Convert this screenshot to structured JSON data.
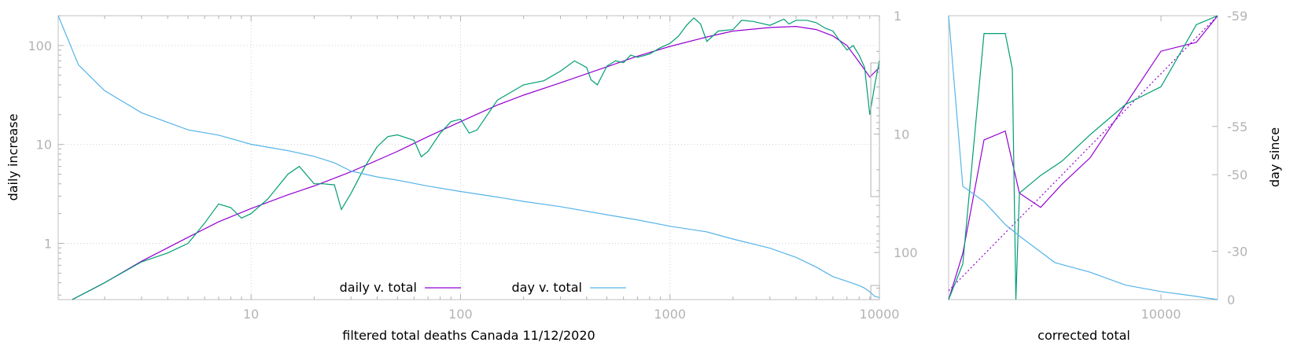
{
  "chart_data": [
    {
      "type": "line",
      "xlabel": "filtered total deaths Canada 11/12/2020",
      "ylabel": "daily increase",
      "y2label": "",
      "xscale": "log",
      "yscale": "log",
      "y2scale": "log-reversed",
      "xlim": [
        1.2,
        10000
      ],
      "ylim": [
        0.27,
        200
      ],
      "y2lim": [
        1,
        250
      ],
      "xticks": [
        10,
        100,
        1000,
        10000
      ],
      "xtick_labels": [
        "10",
        "100",
        "1000",
        "10000"
      ],
      "yticks": [
        1,
        10,
        100
      ],
      "ytick_labels": [
        "1",
        "10",
        "100"
      ],
      "y2ticks": [
        1,
        10,
        100
      ],
      "y2tick_labels": [
        "1",
        "10",
        "100"
      ],
      "grid": true,
      "legend_position": "bottom-center",
      "legend": [
        {
          "label": "daily v. total",
          "color": "#9400d3"
        },
        {
          "label": "day v. total",
          "color": "#56b4e9"
        }
      ],
      "series": [
        {
          "name": "daily v. total",
          "color": "#9400d3",
          "axis": "left",
          "x": [
            1.4,
            2,
            3,
            5,
            7,
            10,
            15,
            20,
            30,
            50,
            70,
            100,
            150,
            200,
            300,
            500,
            700,
            1000,
            1500,
            2000,
            3000,
            4000,
            5000,
            6000,
            7000,
            8000,
            9000,
            10000
          ],
          "y": [
            0.27,
            0.4,
            0.66,
            1.15,
            1.65,
            2.25,
            3.1,
            3.8,
            5.3,
            8.5,
            12,
            17,
            25,
            31.5,
            42,
            61,
            78,
            98,
            122,
            140,
            152,
            156,
            145,
            125,
            100,
            68,
            48,
            60
          ]
        },
        {
          "name": "",
          "color": "#009e73",
          "axis": "left",
          "x": [
            1.4,
            2,
            3,
            4,
            5,
            6,
            7,
            8,
            9,
            10,
            12,
            15,
            17,
            20,
            22,
            25,
            27,
            30,
            35,
            40,
            45,
            50,
            60,
            65,
            70,
            80,
            90,
            100,
            110,
            120,
            150,
            200,
            250,
            300,
            350,
            400,
            420,
            450,
            500,
            550,
            600,
            650,
            700,
            800,
            900,
            1000,
            1100,
            1200,
            1300,
            1400,
            1500,
            1700,
            2000,
            2200,
            2500,
            3000,
            3500,
            3700,
            4000,
            4500,
            5000,
            5500,
            6000,
            6500,
            7000,
            7500,
            8000,
            8500,
            9000,
            9500,
            10000
          ],
          "y": [
            0.27,
            0.4,
            0.65,
            0.8,
            1.0,
            1.6,
            2.5,
            2.3,
            1.8,
            2.0,
            2.8,
            5.0,
            6.0,
            4.0,
            4.0,
            3.9,
            2.2,
            3.2,
            6.0,
            9.5,
            12,
            12.5,
            11,
            7.5,
            8.5,
            13,
            17,
            18,
            13,
            14,
            28,
            40,
            44,
            55,
            70,
            60,
            45,
            40,
            62,
            70,
            67,
            80,
            76,
            82,
            95,
            105,
            125,
            160,
            190,
            165,
            110,
            140,
            145,
            180,
            175,
            160,
            185,
            165,
            180,
            180,
            170,
            150,
            140,
            110,
            90,
            100,
            80,
            60,
            20,
            40,
            70
          ]
        },
        {
          "name": "day v. total",
          "color": "#56b4e9",
          "axis": "right",
          "x": [
            1.2,
            1.5,
            2,
            3,
            5,
            7,
            10,
            15,
            20,
            25,
            30,
            40,
            50,
            70,
            100,
            150,
            200,
            300,
            500,
            700,
            1000,
            1500,
            2000,
            3000,
            4000,
            5000,
            6000,
            7000,
            8000,
            8500,
            9000,
            9500,
            10000
          ],
          "y": [
            1,
            2.6,
            4.3,
            6.6,
            9.2,
            10.2,
            12.2,
            13.8,
            15.4,
            17.5,
            20.5,
            23,
            24.5,
            27.5,
            30.5,
            34,
            37,
            41,
            48,
            53,
            60,
            67,
            77,
            92,
            110,
            133,
            160,
            175,
            190,
            200,
            215,
            235,
            240
          ]
        }
      ]
    },
    {
      "type": "line",
      "xlabel": "corrected total",
      "ylabel": "",
      "y2label": "day since",
      "xlim": [
        7000,
        10800
      ],
      "xticks": [
        10000
      ],
      "xtick_labels": [
        "10000"
      ],
      "ylim": [
        40,
        200
      ],
      "y2ticks": [
        -59,
        -55,
        -50,
        -30,
        0
      ],
      "y2tick_labels": [
        "-59",
        "-55",
        "-50",
        "-30",
        "0"
      ],
      "grid": false,
      "series": [
        {
          "name": "",
          "color": "#9400d3",
          "axis": "left",
          "x": [
            7000,
            7200,
            7500,
            7800,
            8000,
            8300,
            8600,
            9000,
            9500,
            10000,
            10500,
            10800
          ],
          "y": [
            40,
            66,
            130,
            135,
            100,
            92,
            105,
            120,
            150,
            180,
            185,
            200
          ]
        },
        {
          "name": "",
          "color": "#9400d3",
          "style": "dotted",
          "axis": "left",
          "x": [
            7000,
            10800
          ],
          "y": [
            45,
            200
          ]
        },
        {
          "name": "",
          "color": "#009e73",
          "axis": "left",
          "x": [
            7000,
            7200,
            7500,
            7800,
            7900,
            7950,
            8000,
            8300,
            8600,
            9000,
            9500,
            10000,
            10500,
            10800
          ],
          "y": [
            40,
            60,
            190,
            190,
            170,
            10,
            100,
            110,
            118,
            133,
            150,
            160,
            195,
            200
          ]
        },
        {
          "name": "",
          "color": "#56b4e9",
          "axis": "right",
          "x": [
            7000,
            7200,
            7500,
            7800,
            8000,
            8500,
            9000,
            9500,
            10000,
            10500,
            10800
          ],
          "y": [
            -59,
            -47,
            -43,
            -37,
            -34,
            -23,
            -17,
            -9,
            -5,
            -2,
            0
          ]
        }
      ]
    }
  ]
}
